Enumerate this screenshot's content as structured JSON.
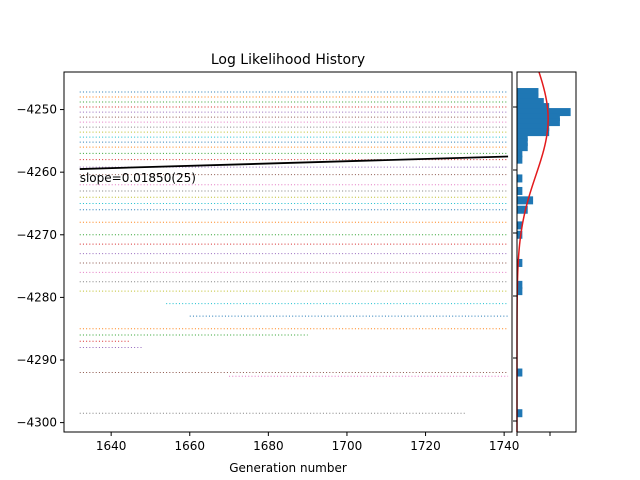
{
  "chart_data": [
    {
      "type": "scatter",
      "title": "Log Likelihood History",
      "xlabel": "Generation number",
      "ylabel": "",
      "xlim": [
        1628,
        1742
      ],
      "ylim": [
        -4301.5,
        -4244
      ],
      "xticks": [
        "1640",
        "1660",
        "1680",
        "1700",
        "1720",
        "1740"
      ],
      "xtick_values": [
        1640,
        1660,
        1680,
        1700,
        1720,
        1740
      ],
      "yticks": [
        "−4250",
        "−4260",
        "−4270",
        "−4280",
        "−4290",
        "−4300"
      ],
      "ytick_values": [
        -4250,
        -4260,
        -4270,
        -4280,
        -4290,
        -4300
      ],
      "dot_bands": [
        {
          "y": -4247.2,
          "x_start": 1632,
          "x_end": 1741
        },
        {
          "y": -4248.0,
          "x_start": 1632,
          "x_end": 1741
        },
        {
          "y": -4248.8,
          "x_start": 1632,
          "x_end": 1741
        },
        {
          "y": -4249.6,
          "x_start": 1632,
          "x_end": 1741
        },
        {
          "y": -4250.4,
          "x_start": 1632,
          "x_end": 1741
        },
        {
          "y": -4251.2,
          "x_start": 1632,
          "x_end": 1741
        },
        {
          "y": -4252.0,
          "x_start": 1632,
          "x_end": 1741
        },
        {
          "y": -4252.8,
          "x_start": 1632,
          "x_end": 1741
        },
        {
          "y": -4253.6,
          "x_start": 1632,
          "x_end": 1741
        },
        {
          "y": -4254.4,
          "x_start": 1632,
          "x_end": 1741
        },
        {
          "y": -4255.2,
          "x_start": 1632,
          "x_end": 1741
        },
        {
          "y": -4256.0,
          "x_start": 1632,
          "x_end": 1741
        },
        {
          "y": -4257.0,
          "x_start": 1632,
          "x_end": 1741
        },
        {
          "y": -4258.0,
          "x_start": 1632,
          "x_end": 1741
        },
        {
          "y": -4259.2,
          "x_start": 1632,
          "x_end": 1741
        },
        {
          "y": -4260.4,
          "x_start": 1632,
          "x_end": 1741
        },
        {
          "y": -4262.0,
          "x_start": 1632,
          "x_end": 1741
        },
        {
          "y": -4263.0,
          "x_start": 1632,
          "x_end": 1741
        },
        {
          "y": -4264.0,
          "x_start": 1632,
          "x_end": 1741
        },
        {
          "y": -4265.0,
          "x_start": 1632,
          "x_end": 1741
        },
        {
          "y": -4266.0,
          "x_start": 1632,
          "x_end": 1741
        },
        {
          "y": -4268.0,
          "x_start": 1632,
          "x_end": 1741
        },
        {
          "y": -4270.0,
          "x_start": 1632,
          "x_end": 1741
        },
        {
          "y": -4271.5,
          "x_start": 1632,
          "x_end": 1741
        },
        {
          "y": -4273.0,
          "x_start": 1632,
          "x_end": 1741
        },
        {
          "y": -4274.5,
          "x_start": 1632,
          "x_end": 1741
        },
        {
          "y": -4276.0,
          "x_start": 1632,
          "x_end": 1741
        },
        {
          "y": -4277.5,
          "x_start": 1632,
          "x_end": 1741
        },
        {
          "y": -4279.0,
          "x_start": 1632,
          "x_end": 1741
        },
        {
          "y": -4281.0,
          "x_start": 1654,
          "x_end": 1741
        },
        {
          "y": -4283.0,
          "x_start": 1660,
          "x_end": 1741
        },
        {
          "y": -4285.0,
          "x_start": 1632,
          "x_end": 1741
        },
        {
          "y": -4286.0,
          "x_start": 1632,
          "x_end": 1690
        },
        {
          "y": -4287.0,
          "x_start": 1632,
          "x_end": 1645
        },
        {
          "y": -4288.0,
          "x_start": 1632,
          "x_end": 1648
        },
        {
          "y": -4292.0,
          "x_start": 1632,
          "x_end": 1741
        },
        {
          "y": -4292.6,
          "x_start": 1670,
          "x_end": 1741
        },
        {
          "y": -4298.5,
          "x_start": 1632,
          "x_end": 1730
        }
      ],
      "fit_line": {
        "x": [
          1632,
          1741
        ],
        "y": [
          -4259.5,
          -4257.5
        ]
      },
      "annotation": "slope=0.01850(25)"
    },
    {
      "type": "bar",
      "orientation": "horizontal",
      "bins": [
        {
          "y": -4247.2,
          "count": 4
        },
        {
          "y": -4248.0,
          "count": 4
        },
        {
          "y": -4248.8,
          "count": 5
        },
        {
          "y": -4249.6,
          "count": 6
        },
        {
          "y": -4250.4,
          "count": 10
        },
        {
          "y": -4251.2,
          "count": 8
        },
        {
          "y": -4252.0,
          "count": 8
        },
        {
          "y": -4252.8,
          "count": 6
        },
        {
          "y": -4253.6,
          "count": 6
        },
        {
          "y": -4254.4,
          "count": 2
        },
        {
          "y": -4255.2,
          "count": 2
        },
        {
          "y": -4256.0,
          "count": 2
        },
        {
          "y": -4257.0,
          "count": 1
        },
        {
          "y": -4258.0,
          "count": 1
        },
        {
          "y": -4261.0,
          "count": 1
        },
        {
          "y": -4263.0,
          "count": 1
        },
        {
          "y": -4264.5,
          "count": 3
        },
        {
          "y": -4266.0,
          "count": 2
        },
        {
          "y": -4268.5,
          "count": 1
        },
        {
          "y": -4270.0,
          "count": 1
        },
        {
          "y": -4274.5,
          "count": 1
        },
        {
          "y": -4278.0,
          "count": 1
        },
        {
          "y": -4279.0,
          "count": 1
        },
        {
          "y": -4292.0,
          "count": 1
        },
        {
          "y": -4298.5,
          "count": 1
        }
      ],
      "xlim": [
        0,
        11
      ],
      "ylim": [
        -4301.5,
        -4244
      ],
      "density_curve": {
        "mean": -4251.5,
        "sd": 9,
        "peak_count": 5.8
      },
      "colors": {
        "bars": "#1f77b4",
        "curve": "#e31a1c"
      }
    }
  ]
}
